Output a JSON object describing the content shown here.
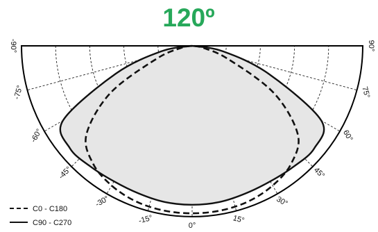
{
  "title": "120º",
  "colors": {
    "title": "#27a85a",
    "fill": "#e6e6e6",
    "stroke": "#111111"
  },
  "tick_labels": [
    {
      "angle": -90,
      "text": "-90°"
    },
    {
      "angle": -75,
      "text": "-75°"
    },
    {
      "angle": -60,
      "text": "-60°"
    },
    {
      "angle": -45,
      "text": "-45°"
    },
    {
      "angle": -30,
      "text": "-30°"
    },
    {
      "angle": -15,
      "text": "-15°"
    },
    {
      "angle": 0,
      "text": "0°"
    },
    {
      "angle": 15,
      "text": "15°"
    },
    {
      "angle": 30,
      "text": "30°"
    },
    {
      "angle": 45,
      "text": "45°"
    },
    {
      "angle": 60,
      "text": "60°"
    },
    {
      "angle": 75,
      "text": "75°"
    },
    {
      "angle": 90,
      "text": "90°"
    }
  ],
  "legend": [
    {
      "label": "C0 - C180",
      "style": "dashed"
    },
    {
      "label": "C90 - C270",
      "style": "solid"
    }
  ],
  "chart_data": {
    "type": "polar",
    "title": "120º",
    "angle_range": [
      -90,
      90
    ],
    "angle_step": 15,
    "rings": 5,
    "grid": true,
    "series": [
      {
        "name": "C0 - C180",
        "style": "dashed",
        "points": [
          {
            "angle": 0,
            "r": 0.98
          },
          {
            "angle": 10,
            "r": 0.978
          },
          {
            "angle": 20,
            "r": 0.968
          },
          {
            "angle": 30,
            "r": 0.944
          },
          {
            "angle": 40,
            "r": 0.902
          },
          {
            "angle": 50,
            "r": 0.809
          },
          {
            "angle": 60,
            "r": 0.555
          },
          {
            "angle": 70,
            "r": 0.223
          },
          {
            "angle": 80,
            "r": 0.062
          },
          {
            "angle": 90,
            "r": 0
          }
        ]
      },
      {
        "name": "C90 - C270",
        "style": "solid",
        "points": [
          {
            "angle": 0,
            "r": 0.93
          },
          {
            "angle": 10,
            "r": 0.928
          },
          {
            "angle": 20,
            "r": 0.919
          },
          {
            "angle": 30,
            "r": 0.916
          },
          {
            "angle": 40,
            "r": 0.924
          },
          {
            "angle": 50,
            "r": 0.934
          },
          {
            "angle": 60,
            "r": 0.874
          },
          {
            "angle": 70,
            "r": 0.476
          },
          {
            "angle": 80,
            "r": 0.182
          },
          {
            "angle": 90,
            "r": 0
          }
        ]
      }
    ]
  }
}
